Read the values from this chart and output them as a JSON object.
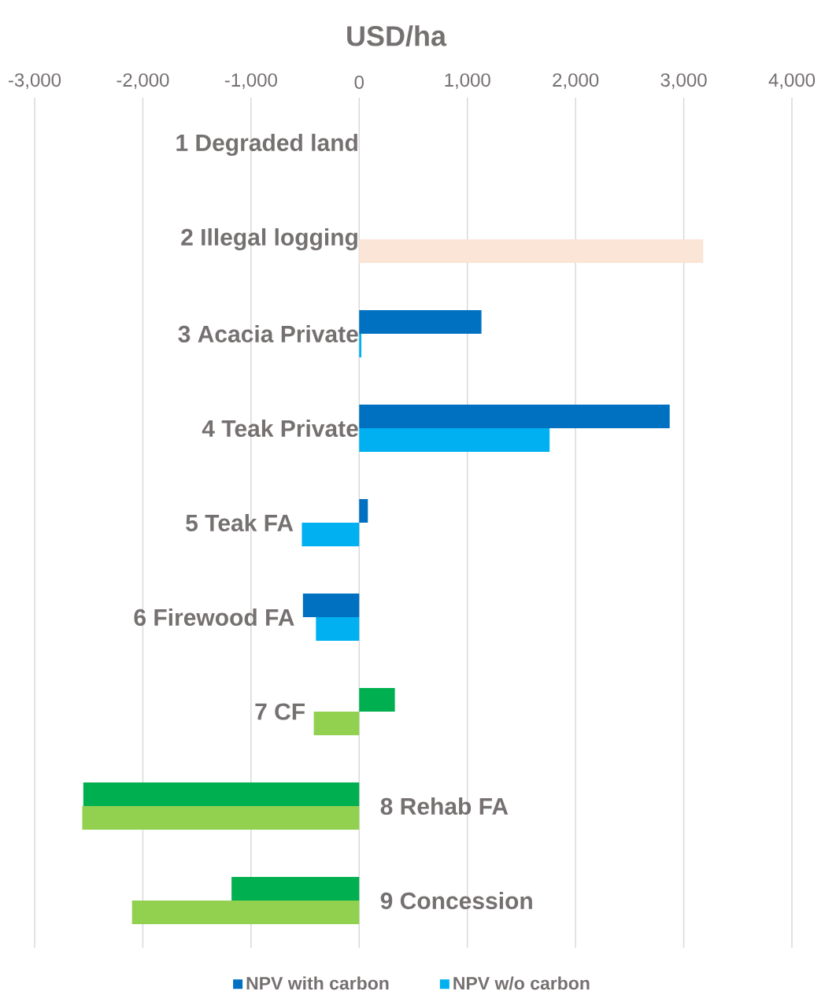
{
  "chart_data": {
    "type": "bar",
    "orientation": "horizontal",
    "xlabel": "USD/ha",
    "categories": [
      "1 Degraded land",
      "2 Illegal logging",
      "3 Acacia Private",
      "4 Teak Private",
      "5 Teak FA",
      "6 Firewood FA",
      "7 CF",
      "8 Rehab FA",
      "9 Concession"
    ],
    "series": [
      {
        "name": "NPV with carbon",
        "color": "#0070c0",
        "colors": [
          "#0070c0",
          "#0070c0",
          "#0070c0",
          "#0070c0",
          "#0070c0",
          "#0070c0",
          "#00b050",
          "#00b050",
          "#00b050"
        ],
        "values": [
          null,
          null,
          1130,
          2870,
          80,
          -520,
          330,
          -2550,
          -1180
        ]
      },
      {
        "name": "NPV w/o carbon",
        "color": "#00b0f0",
        "colors": [
          "#00b0f0",
          "#fbe5d6",
          "#00b0f0",
          "#00b0f0",
          "#00b0f0",
          "#00b0f0",
          "#92d050",
          "#92d050",
          "#92d050"
        ],
        "values": [
          null,
          3180,
          20,
          1760,
          -530,
          -400,
          -420,
          -2560,
          -2100
        ]
      }
    ],
    "xlim": [
      -3000,
      4000
    ],
    "xticks": [
      {
        "value": -3000,
        "label": "-3,000"
      },
      {
        "value": -2000,
        "label": "-2,000"
      },
      {
        "value": -1000,
        "label": "-1,000"
      },
      0,
      {
        "value": 1000,
        "label": "1,000"
      },
      {
        "value": 2000,
        "label": "2,000"
      },
      {
        "value": 3000,
        "label": "3,000"
      },
      {
        "value": 4000,
        "label": "4,000"
      }
    ],
    "grid": "x",
    "legend": "bottom"
  }
}
